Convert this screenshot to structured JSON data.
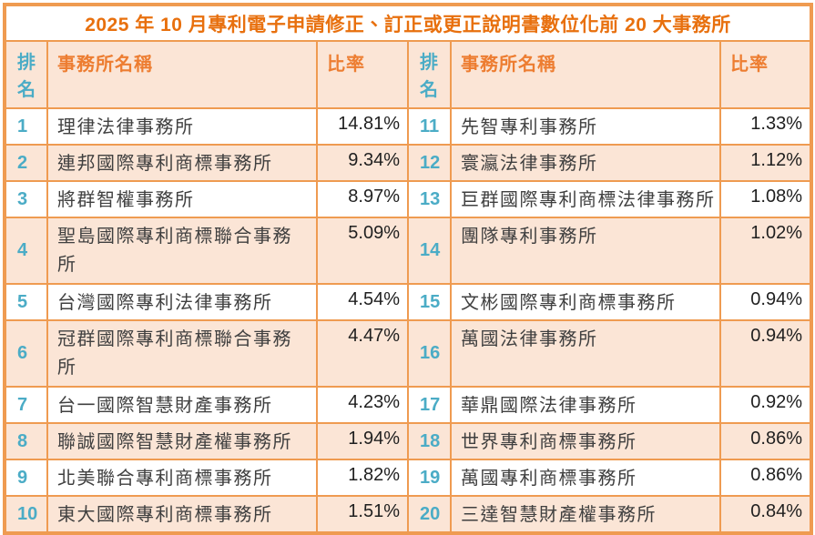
{
  "title": "2025 年 10 月專利電子申請修正、訂正或更正說明書數位化前 20 大事務所",
  "columns": {
    "rank": "排名",
    "firm": "事務所名稱",
    "ratio": "比率"
  },
  "colors": {
    "border_orange": "#EF9B51",
    "title_text": "#E8700E",
    "header_text": "#ED7D31",
    "rank_text": "#4BACC6",
    "name_text": "#404040",
    "pct_text": "#1F1F1F",
    "stripe_bg": "#FBE5D6",
    "row_bg": "#FFFFFF"
  },
  "rows": [
    {
      "l": {
        "rank": "1",
        "name": "理律法律事務所",
        "pct": "14.81%"
      },
      "r": {
        "rank": "11",
        "name": "先智專利事務所",
        "pct": "1.33%"
      }
    },
    {
      "l": {
        "rank": "2",
        "name": "連邦國際專利商標事務所",
        "pct": "9.34%"
      },
      "r": {
        "rank": "12",
        "name": "寰瀛法律事務所",
        "pct": "1.12%"
      }
    },
    {
      "l": {
        "rank": "3",
        "name": "將群智權事務所",
        "pct": "8.97%"
      },
      "r": {
        "rank": "13",
        "name": "巨群國際專利商標法律事務所",
        "pct": "1.08%"
      }
    },
    {
      "l": {
        "rank": "4",
        "name": "聖島國際專利商標聯合事務所",
        "pct": "5.09%"
      },
      "r": {
        "rank": "14",
        "name": "團隊專利事務所",
        "pct": "1.02%"
      }
    },
    {
      "l": {
        "rank": "5",
        "name": "台灣國際專利法律事務所",
        "pct": "4.54%"
      },
      "r": {
        "rank": "15",
        "name": "文彬國際專利商標事務所",
        "pct": "0.94%"
      }
    },
    {
      "l": {
        "rank": "6",
        "name": "冠群國際專利商標聯合事務所",
        "pct": "4.47%"
      },
      "r": {
        "rank": "16",
        "name": "萬國法律事務所",
        "pct": "0.94%"
      }
    },
    {
      "l": {
        "rank": "7",
        "name": "台一國際智慧財產事務所",
        "pct": "4.23%"
      },
      "r": {
        "rank": "17",
        "name": "華鼎國際法律事務所",
        "pct": "0.92%"
      }
    },
    {
      "l": {
        "rank": "8",
        "name": "聯誠國際智慧財產權事務所",
        "pct": "1.94%"
      },
      "r": {
        "rank": "18",
        "name": "世界專利商標事務所",
        "pct": "0.86%"
      }
    },
    {
      "l": {
        "rank": "9",
        "name": "北美聯合專利商標事務所",
        "pct": "1.82%"
      },
      "r": {
        "rank": "19",
        "name": "萬國專利商標事務所",
        "pct": "0.86%"
      }
    },
    {
      "l": {
        "rank": "10",
        "name": "東大國際專利商標事務所",
        "pct": "1.51%"
      },
      "r": {
        "rank": "20",
        "name": "三達智慧財產權事務所",
        "pct": "0.84%"
      }
    }
  ]
}
